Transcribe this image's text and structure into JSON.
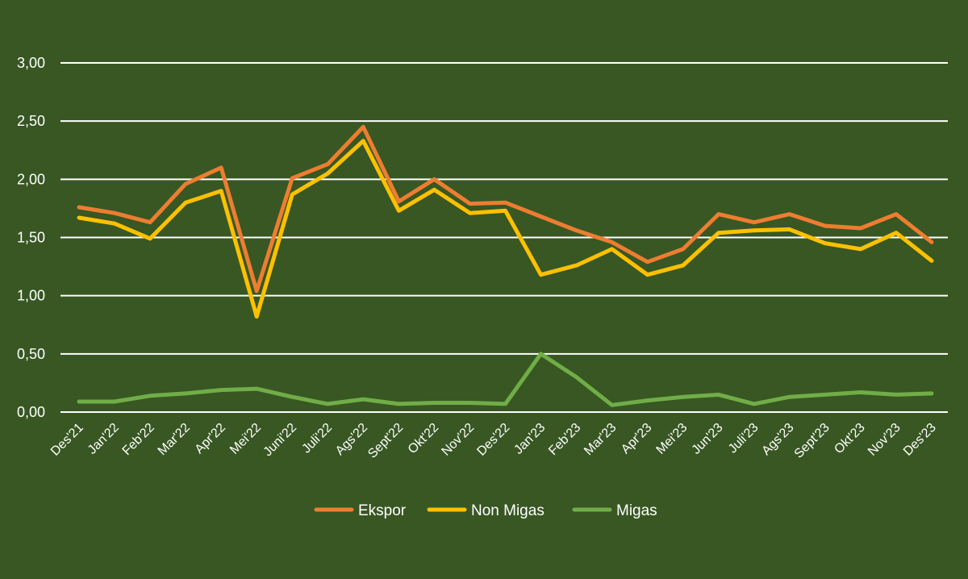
{
  "chart_data": {
    "type": "line",
    "title": "",
    "xlabel": "",
    "ylabel": "",
    "ylim": [
      0,
      3
    ],
    "yticks": [
      "0,00",
      "0,50",
      "1,00",
      "1,50",
      "2,00",
      "2,50",
      "3,00"
    ],
    "ytick_values": [
      0,
      0.5,
      1,
      1.5,
      2,
      2.5,
      3
    ],
    "grid": true,
    "legend_position": "bottom-center",
    "categories": [
      "Des'21",
      "Jan'22",
      "Feb'22",
      "Mar'22",
      "Apr'22",
      "Mei'22",
      "Juni'22",
      "Juli'22",
      "Ags'22",
      "Sept'22",
      "Okt'22",
      "Nov'22",
      "Des'22",
      "Jan'23",
      "Feb'23",
      "Mar'23",
      "Apr'23",
      "Mei'23",
      "Jun'23",
      "Juli'23",
      "Ags'23",
      "Sept'23",
      "Okt'23",
      "Nov'23",
      "Des'23"
    ],
    "series": [
      {
        "name": "Ekspor",
        "color": "#ed7d31",
        "values": [
          1.76,
          1.71,
          1.63,
          1.96,
          2.1,
          1.04,
          2.01,
          2.13,
          2.45,
          1.81,
          2.0,
          1.79,
          1.8,
          1.68,
          1.56,
          1.46,
          1.29,
          1.4,
          1.7,
          1.63,
          1.7,
          1.6,
          1.58,
          1.7,
          1.46
        ]
      },
      {
        "name": "Non Migas",
        "color": "#ffc000",
        "values": [
          1.67,
          1.62,
          1.49,
          1.8,
          1.9,
          0.82,
          1.87,
          2.05,
          2.33,
          1.73,
          1.91,
          1.71,
          1.73,
          1.18,
          1.26,
          1.4,
          1.18,
          1.26,
          1.54,
          1.56,
          1.57,
          1.45,
          1.4,
          1.54,
          1.3
        ]
      },
      {
        "name": "Migas",
        "color": "#70ad47",
        "values": [
          0.09,
          0.09,
          0.14,
          0.16,
          0.19,
          0.2,
          0.13,
          0.07,
          0.11,
          0.07,
          0.08,
          0.08,
          0.07,
          0.5,
          0.3,
          0.06,
          0.1,
          0.13,
          0.15,
          0.07,
          0.13,
          0.15,
          0.17,
          0.15,
          0.16
        ]
      }
    ]
  }
}
